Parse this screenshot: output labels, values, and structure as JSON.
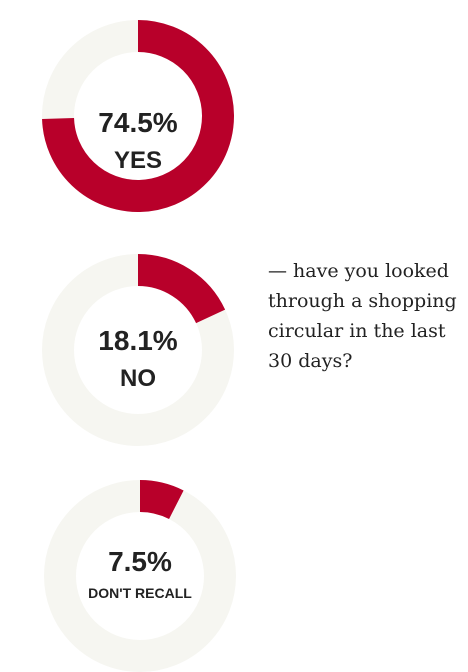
{
  "chart_data": [
    {
      "type": "pie",
      "value": 74.5,
      "percent_label": "74.5%",
      "category": "YES"
    },
    {
      "type": "pie",
      "value": 18.1,
      "percent_label": "18.1%",
      "category": "NO"
    },
    {
      "type": "pie",
      "value": 7.5,
      "percent_label": "7.5%",
      "category": "DON'T RECALL"
    }
  ],
  "question": "— have you looked through a shopping circular in the last 30 days?",
  "colors": {
    "accent": "#b8002a",
    "track": "#f6f6f1",
    "text": "#222222"
  }
}
